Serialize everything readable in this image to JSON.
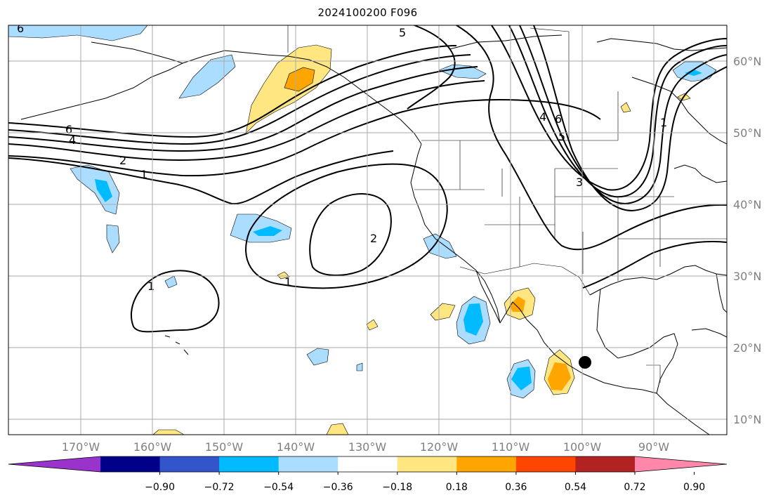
{
  "title": "2024100200 F096",
  "lat_labels": [
    "60°N",
    "50°N",
    "40°N",
    "30°N",
    "20°N",
    "10°N"
  ],
  "lon_labels": [
    "170°W",
    "160°W",
    "150°W",
    "140°W",
    "130°W",
    "120°W",
    "110°W",
    "100°W",
    "90°W"
  ],
  "contour_labels": [
    "6",
    "5",
    "4",
    "2",
    "1",
    "2",
    "1",
    "1",
    "6",
    "4",
    "6",
    "5",
    "1",
    "3"
  ],
  "colorbar": {
    "tick_labels": [
      "−0.90",
      "−0.72",
      "−0.54",
      "−0.36",
      "−0.18",
      "0.18",
      "0.36",
      "0.54",
      "0.72",
      "0.90"
    ],
    "colors": [
      "#9933cc",
      "#000088",
      "#3355cc",
      "#00bbff",
      "#aaddff",
      "#ffffff",
      "#ffe680",
      "#ffa500",
      "#ff4500",
      "#b22222",
      "#ff88aa"
    ]
  },
  "marker": {
    "lon": -100,
    "lat": 18,
    "shape": "black-dot"
  }
}
